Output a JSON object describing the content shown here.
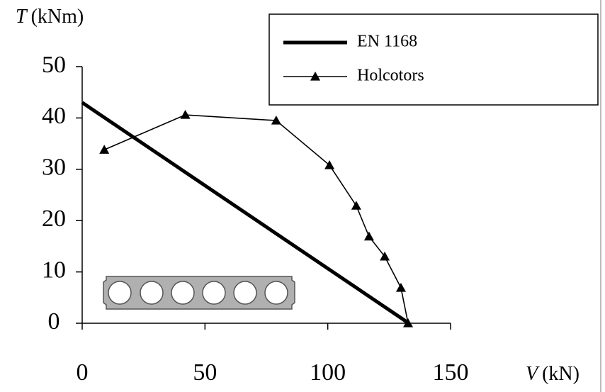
{
  "chart_data": {
    "type": "line",
    "y_label_symbol": "T",
    "y_label_unit": "(kNm)",
    "x_label_symbol": "V",
    "x_label_unit": "(kN)",
    "xlim": [
      0,
      150
    ],
    "xticks": [
      0,
      50,
      100,
      150
    ],
    "ylim": [
      0,
      50
    ],
    "yticks": [
      0,
      10,
      20,
      30,
      40,
      50
    ],
    "legend": "upper right",
    "series": [
      {
        "name": "EN 1168",
        "color": "#000000",
        "linewidth": 5,
        "marker": null,
        "x": [
          0,
          133
        ],
        "values": [
          43,
          0
        ]
      },
      {
        "name": "Holcotors",
        "color": "#000000",
        "linewidth": 1.6,
        "marker": "triangle",
        "x": [
          9,
          42,
          79,
          100.7,
          111.6,
          116.8,
          123.2,
          129.8,
          132.7
        ],
        "values": [
          33.8,
          40.6,
          39.5,
          30.8,
          22.9,
          16.9,
          13,
          6.9,
          0
        ]
      }
    ]
  }
}
